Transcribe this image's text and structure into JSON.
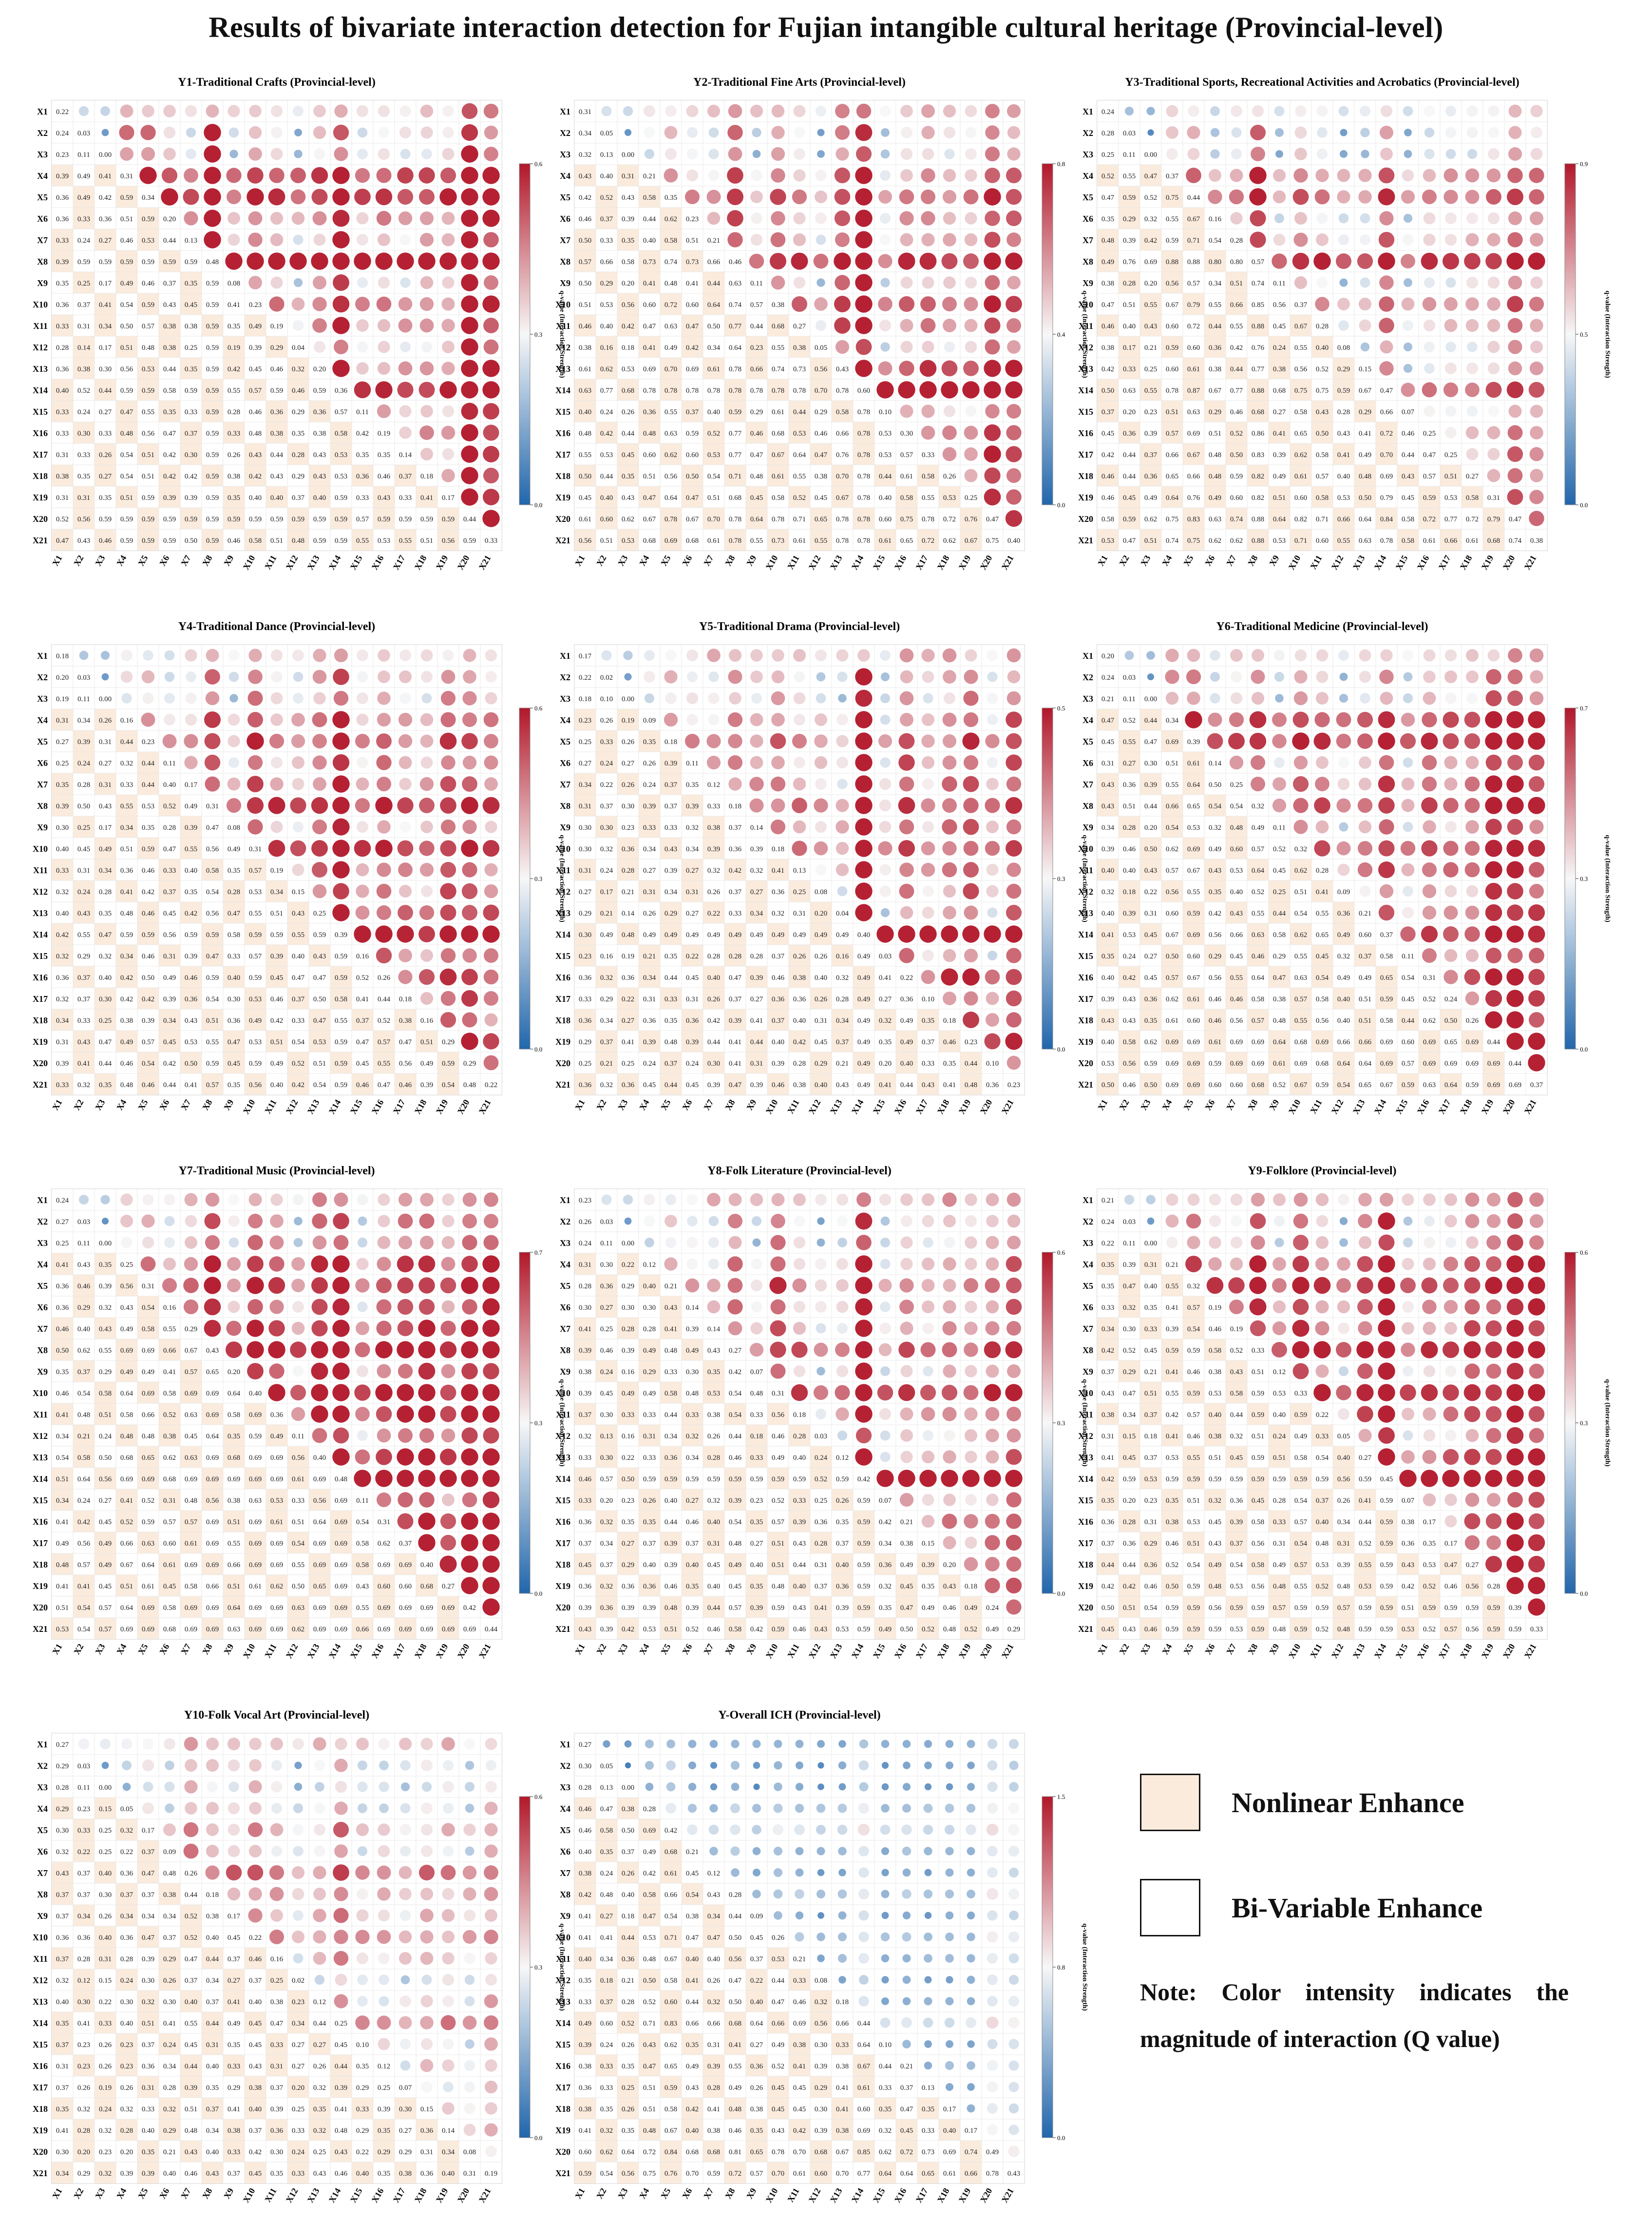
{
  "title": "Results of bivariate interaction detection for Fujian intangible cultural heritage (Provincial-level)",
  "colorbar_label": "q-value (Interaction Strength)",
  "colors": {
    "nonlinear_fill": "#faebdd",
    "grid_line": "#e6e6e6",
    "low": "#2166ac",
    "mid": "#f7f7f7",
    "high": "#b2182b"
  },
  "legend": {
    "nonlinear_label": "Nonlinear Enhance",
    "bivariate_label": "Bi-Variable Enhance",
    "note": "Note: Color intensity indicates the magnitude of interaction (Q value)"
  },
  "chart_data": [
    {
      "type": "heatmap",
      "title": "Y1-Traditional Crafts (Provincial-level)",
      "variables": [
        "X1",
        "X2",
        "X3",
        "X4",
        "X5",
        "X6",
        "X7",
        "X8",
        "X9",
        "X10",
        "X11",
        "X12",
        "X13",
        "X14",
        "X15",
        "X16",
        "X17",
        "X18",
        "X19",
        "X20",
        "X21"
      ],
      "diagonal": [
        0.22,
        0.03,
        0.0,
        0.31,
        0.34,
        0.2,
        0.13,
        0.48,
        0.08,
        0.23,
        0.19,
        0.04,
        0.2,
        0.36,
        0.11,
        0.19,
        0.14,
        0.18,
        0.17,
        0.44,
        0.33
      ],
      "first_column": [
        0.22,
        0.24,
        0.23,
        0.39,
        0.36,
        0.36,
        0.33,
        0.39,
        0.35,
        0.36,
        0.33,
        0.28,
        0.36,
        0.4,
        0.33,
        0.33,
        0.31,
        0.38,
        0.31,
        0.52,
        0.47
      ],
      "cbar_ticks": [
        0.0,
        0.3,
        0.6
      ]
    },
    {
      "type": "heatmap",
      "title": "Y2-Traditional Fine Arts (Provincial-level)",
      "variables": [
        "X1",
        "X2",
        "X3",
        "X4",
        "X5",
        "X6",
        "X7",
        "X8",
        "X9",
        "X10",
        "X11",
        "X12",
        "X13",
        "X14",
        "X15",
        "X16",
        "X17",
        "X18",
        "X19",
        "X20",
        "X21"
      ],
      "diagonal": [
        0.31,
        0.05,
        0.0,
        0.21,
        0.35,
        0.23,
        0.21,
        0.46,
        0.11,
        0.38,
        0.27,
        0.05,
        0.43,
        0.6,
        0.1,
        0.3,
        0.33,
        0.26,
        0.25,
        0.47,
        0.4
      ],
      "first_column": [
        0.31,
        0.34,
        0.32,
        0.43,
        0.42,
        0.46,
        0.5,
        0.57,
        0.5,
        0.51,
        0.46,
        0.38,
        0.61,
        0.63,
        0.4,
        0.48,
        0.55,
        0.5,
        0.45,
        0.61,
        0.56
      ],
      "cbar_ticks": [
        0.0,
        0.4,
        0.8
      ]
    },
    {
      "type": "heatmap",
      "title": "Y3-Traditional Sports, Recreational Activities and Acrobatics (Provincial-level)",
      "variables": [
        "X1",
        "X2",
        "X3",
        "X4",
        "X5",
        "X6",
        "X7",
        "X8",
        "X9",
        "X10",
        "X11",
        "X12",
        "X13",
        "X14",
        "X15",
        "X16",
        "X17",
        "X18",
        "X19",
        "X20",
        "X21"
      ],
      "diagonal": [
        0.24,
        0.03,
        0.0,
        0.37,
        0.44,
        0.16,
        0.28,
        0.57,
        0.11,
        0.37,
        0.28,
        0.08,
        0.15,
        0.47,
        0.07,
        0.25,
        0.25,
        0.27,
        0.31,
        0.47,
        0.38
      ],
      "first_column": [
        0.24,
        0.28,
        0.25,
        0.52,
        0.47,
        0.35,
        0.48,
        0.49,
        0.38,
        0.47,
        0.46,
        0.38,
        0.42,
        0.5,
        0.37,
        0.45,
        0.42,
        0.46,
        0.46,
        0.58,
        0.53
      ],
      "cbar_ticks": [
        0.0,
        0.45,
        0.9
      ]
    },
    {
      "type": "heatmap",
      "title": "Y4-Traditional Dance (Provincial-level)",
      "variables": [
        "X1",
        "X2",
        "X3",
        "X4",
        "X5",
        "X6",
        "X7",
        "X8",
        "X9",
        "X10",
        "X11",
        "X12",
        "X13",
        "X14",
        "X15",
        "X16",
        "X17",
        "X18",
        "X19",
        "X20",
        "X21"
      ],
      "diagonal": [
        0.18,
        0.03,
        0.0,
        0.16,
        0.23,
        0.11,
        0.17,
        0.31,
        0.08,
        0.31,
        0.19,
        0.15,
        0.25,
        0.39,
        0.16,
        0.26,
        0.18,
        0.16,
        0.29,
        0.29,
        0.22
      ],
      "first_column": [
        0.18,
        0.2,
        0.19,
        0.31,
        0.27,
        0.25,
        0.35,
        0.39,
        0.3,
        0.4,
        0.33,
        0.32,
        0.4,
        0.42,
        0.32,
        0.36,
        0.32,
        0.34,
        0.31,
        0.39,
        0.33
      ],
      "cbar_ticks": [
        0.0,
        0.3,
        0.6
      ]
    },
    {
      "type": "heatmap",
      "title": "Y5-Traditional Drama (Provincial-level)",
      "variables": [
        "X1",
        "X2",
        "X3",
        "X4",
        "X5",
        "X6",
        "X7",
        "X8",
        "X9",
        "X10",
        "X11",
        "X12",
        "X13",
        "X14",
        "X15",
        "X16",
        "X17",
        "X18",
        "X19",
        "X20",
        "X21"
      ],
      "diagonal": [
        0.17,
        0.02,
        0.0,
        0.09,
        0.18,
        0.11,
        0.12,
        0.18,
        0.14,
        0.18,
        0.13,
        0.08,
        0.04,
        0.4,
        0.03,
        0.22,
        0.1,
        0.18,
        0.23,
        0.1,
        0.23
      ],
      "first_column": [
        0.17,
        0.22,
        0.18,
        0.23,
        0.25,
        0.27,
        0.34,
        0.31,
        0.3,
        0.3,
        0.31,
        0.27,
        0.29,
        0.3,
        0.23,
        0.36,
        0.33,
        0.36,
        0.29,
        0.25,
        0.36
      ],
      "cbar_ticks": [
        0.0,
        0.25,
        0.5
      ]
    },
    {
      "type": "heatmap",
      "title": "Y6-Traditional Medicine (Provincial-level)",
      "variables": [
        "X1",
        "X2",
        "X3",
        "X4",
        "X5",
        "X6",
        "X7",
        "X8",
        "X9",
        "X10",
        "X11",
        "X12",
        "X13",
        "X14",
        "X15",
        "X16",
        "X17",
        "X18",
        "X19",
        "X20",
        "X21"
      ],
      "diagonal": [
        0.2,
        0.03,
        0.0,
        0.34,
        0.39,
        0.14,
        0.25,
        0.32,
        0.11,
        0.32,
        0.28,
        0.09,
        0.21,
        0.37,
        0.11,
        0.31,
        0.24,
        0.26,
        0.44,
        0.44,
        0.37
      ],
      "first_column": [
        0.2,
        0.24,
        0.21,
        0.47,
        0.45,
        0.31,
        0.43,
        0.43,
        0.34,
        0.39,
        0.4,
        0.32,
        0.4,
        0.41,
        0.35,
        0.4,
        0.39,
        0.43,
        0.4,
        0.53,
        0.5
      ],
      "cbar_ticks": [
        0.0,
        0.35,
        0.7
      ]
    },
    {
      "type": "heatmap",
      "title": "Y7-Traditional Music (Provincial-level)",
      "variables": [
        "X1",
        "X2",
        "X3",
        "X4",
        "X5",
        "X6",
        "X7",
        "X8",
        "X9",
        "X10",
        "X11",
        "X12",
        "X13",
        "X14",
        "X15",
        "X16",
        "X17",
        "X18",
        "X19",
        "X20",
        "X21"
      ],
      "diagonal": [
        0.24,
        0.03,
        0.0,
        0.25,
        0.31,
        0.16,
        0.29,
        0.43,
        0.2,
        0.4,
        0.36,
        0.11,
        0.4,
        0.48,
        0.11,
        0.31,
        0.37,
        0.4,
        0.27,
        0.42,
        0.44
      ],
      "first_column": [
        0.24,
        0.27,
        0.25,
        0.41,
        0.36,
        0.36,
        0.46,
        0.5,
        0.35,
        0.46,
        0.41,
        0.34,
        0.54,
        0.51,
        0.34,
        0.41,
        0.49,
        0.48,
        0.41,
        0.51,
        0.53
      ],
      "cbar_ticks": [
        0.0,
        0.35,
        0.7
      ]
    },
    {
      "type": "heatmap",
      "title": "Y8-Folk Literature (Provincial-level)",
      "variables": [
        "X1",
        "X2",
        "X3",
        "X4",
        "X5",
        "X6",
        "X7",
        "X8",
        "X9",
        "X10",
        "X11",
        "X12",
        "X13",
        "X14",
        "X15",
        "X16",
        "X17",
        "X18",
        "X19",
        "X20",
        "X21"
      ],
      "diagonal": [
        0.23,
        0.03,
        0.0,
        0.12,
        0.21,
        0.14,
        0.14,
        0.27,
        0.07,
        0.31,
        0.18,
        0.03,
        0.12,
        0.42,
        0.07,
        0.21,
        0.15,
        0.2,
        0.18,
        0.24,
        0.29
      ],
      "first_column": [
        0.23,
        0.26,
        0.24,
        0.31,
        0.28,
        0.3,
        0.41,
        0.39,
        0.38,
        0.39,
        0.37,
        0.32,
        0.33,
        0.46,
        0.33,
        0.36,
        0.37,
        0.45,
        0.36,
        0.39,
        0.43
      ],
      "cbar_ticks": [
        0.0,
        0.3,
        0.6
      ]
    },
    {
      "type": "heatmap",
      "title": "Y9-Folklore (Provincial-level)",
      "variables": [
        "X1",
        "X2",
        "X3",
        "X4",
        "X5",
        "X6",
        "X7",
        "X8",
        "X9",
        "X10",
        "X11",
        "X12",
        "X13",
        "X14",
        "X15",
        "X16",
        "X17",
        "X18",
        "X19",
        "X20",
        "X21"
      ],
      "diagonal": [
        0.21,
        0.03,
        0.0,
        0.21,
        0.32,
        0.19,
        0.19,
        0.33,
        0.12,
        0.33,
        0.22,
        0.05,
        0.27,
        0.45,
        0.07,
        0.17,
        0.17,
        0.27,
        0.28,
        0.39,
        0.33
      ],
      "first_column": [
        0.21,
        0.24,
        0.22,
        0.35,
        0.35,
        0.33,
        0.34,
        0.42,
        0.37,
        0.43,
        0.38,
        0.31,
        0.41,
        0.42,
        0.35,
        0.36,
        0.37,
        0.44,
        0.42,
        0.5,
        0.45
      ],
      "cbar_ticks": [
        0.0,
        0.3,
        0.6
      ]
    },
    {
      "type": "heatmap",
      "title": "Y10-Folk Vocal Art (Provincial-level)",
      "variables": [
        "X1",
        "X2",
        "X3",
        "X4",
        "X5",
        "X6",
        "X7",
        "X8",
        "X9",
        "X10",
        "X11",
        "X12",
        "X13",
        "X14",
        "X15",
        "X16",
        "X17",
        "X18",
        "X19",
        "X20",
        "X21"
      ],
      "diagonal": [
        0.27,
        0.03,
        0.0,
        0.05,
        0.17,
        0.09,
        0.26,
        0.18,
        0.17,
        0.22,
        0.16,
        0.02,
        0.12,
        0.25,
        0.1,
        0.12,
        0.07,
        0.15,
        0.14,
        0.08,
        0.19
      ],
      "first_column": [
        0.27,
        0.29,
        0.28,
        0.29,
        0.3,
        0.32,
        0.43,
        0.37,
        0.37,
        0.36,
        0.37,
        0.32,
        0.4,
        0.35,
        0.37,
        0.31,
        0.37,
        0.35,
        0.41,
        0.3,
        0.34
      ],
      "cbar_ticks": [
        0.0,
        0.3,
        0.6
      ]
    },
    {
      "type": "heatmap",
      "title": "Y-Overall ICH (Provincial-level)",
      "variables": [
        "X1",
        "X2",
        "X3",
        "X4",
        "X5",
        "X6",
        "X7",
        "X8",
        "X9",
        "X10",
        "X11",
        "X12",
        "X13",
        "X14",
        "X15",
        "X16",
        "X17",
        "X18",
        "X19",
        "X20",
        "X21"
      ],
      "diagonal": [
        0.27,
        0.05,
        0.0,
        0.28,
        0.42,
        0.21,
        0.12,
        0.28,
        0.09,
        0.26,
        0.21,
        0.08,
        0.18,
        0.44,
        0.1,
        0.21,
        0.13,
        0.17,
        0.17,
        0.49,
        0.43
      ],
      "first_column": [
        0.27,
        0.3,
        0.28,
        0.46,
        0.46,
        0.4,
        0.38,
        0.42,
        0.41,
        0.41,
        0.4,
        0.35,
        0.33,
        0.49,
        0.39,
        0.38,
        0.36,
        0.38,
        0.41,
        0.6,
        0.59
      ],
      "cbar_ticks": [
        0.0,
        0.75,
        1.5
      ]
    }
  ]
}
